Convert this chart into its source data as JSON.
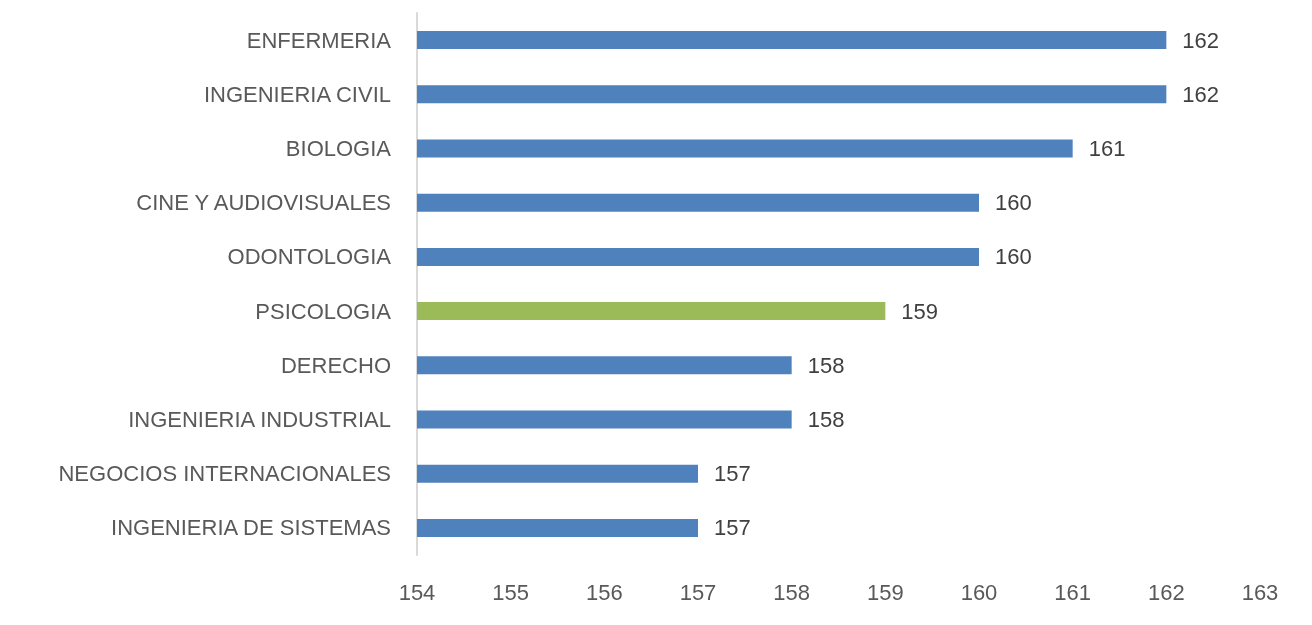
{
  "chart_data": {
    "type": "bar",
    "orientation": "horizontal",
    "categories": [
      "ENFERMERIA",
      "INGENIERIA CIVIL",
      "BIOLOGIA",
      "CINE Y AUDIOVISUALES",
      "ODONTOLOGIA",
      "PSICOLOGIA",
      "DERECHO",
      "INGENIERIA INDUSTRIAL",
      "NEGOCIOS INTERNACIONALES",
      "INGENIERIA DE SISTEMAS"
    ],
    "values": [
      162,
      162,
      161,
      160,
      160,
      159,
      158,
      158,
      157,
      157
    ],
    "colors": [
      "#4f81bd",
      "#4f81bd",
      "#4f81bd",
      "#4f81bd",
      "#4f81bd",
      "#9bbb59",
      "#4f81bd",
      "#4f81bd",
      "#4f81bd",
      "#4f81bd"
    ],
    "xlim": [
      154,
      163
    ],
    "xticks": [
      154,
      155,
      156,
      157,
      158,
      159,
      160,
      161,
      162,
      163
    ],
    "data_labels": true
  }
}
